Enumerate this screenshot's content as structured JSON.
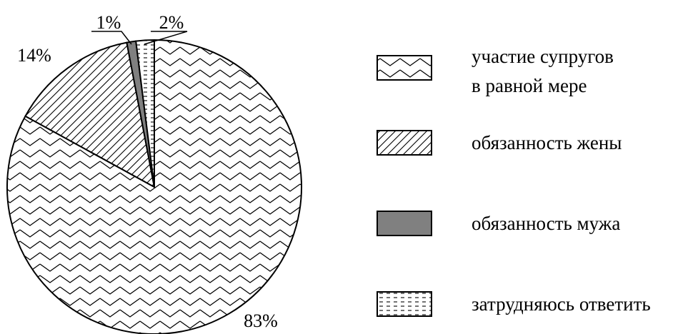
{
  "chart_data": {
    "type": "pie",
    "title": "",
    "slices": [
      {
        "label_lines": [
          "участие супругов",
          "в равной мере"
        ],
        "value": 83,
        "label": "83%",
        "pattern": "zigzag",
        "color": "#ffffff"
      },
      {
        "label_lines": [
          "обязанность жены"
        ],
        "value": 14,
        "label": "14%",
        "pattern": "diagonal",
        "color": "#ffffff"
      },
      {
        "label_lines": [
          "обязанность мужа"
        ],
        "value": 1,
        "label": "1%",
        "pattern": "solid",
        "color": "#808080"
      },
      {
        "label_lines": [
          "затрудняюсь ответить"
        ],
        "value": 2,
        "label": "2%",
        "pattern": "dashed",
        "color": "#ffffff"
      }
    ],
    "legend_placement": "right"
  }
}
